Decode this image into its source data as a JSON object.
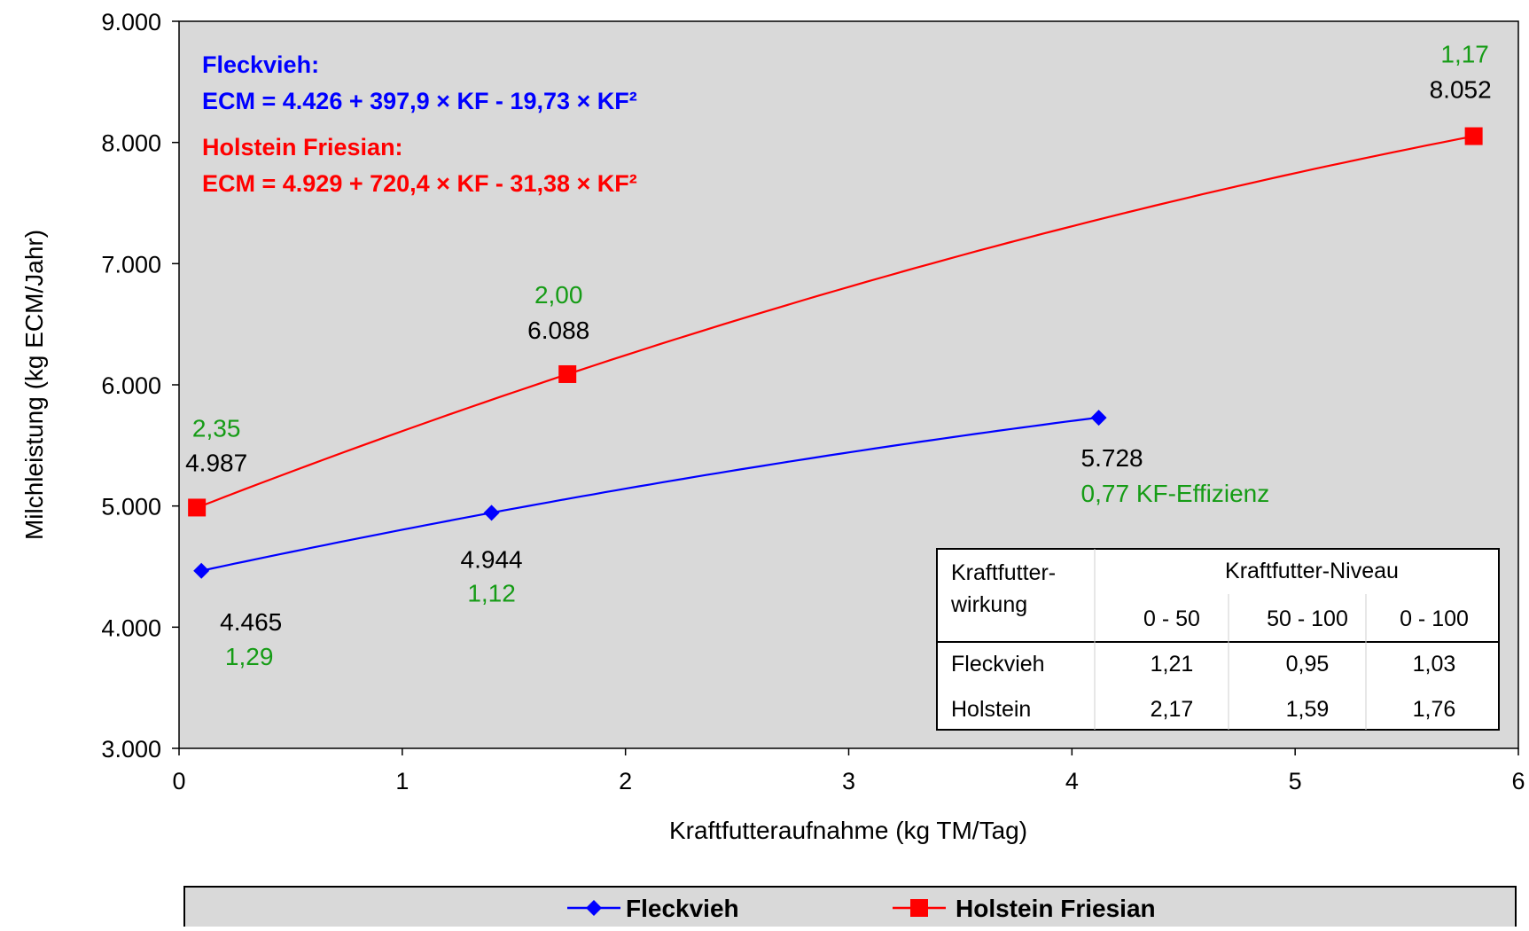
{
  "chart_data": {
    "type": "line",
    "xlabel": "Kraftfutteraufnahme (kg TM/Tag)",
    "ylabel": "Milchleistung (kg ECM/Jahr)",
    "xlim": [
      0,
      6
    ],
    "ylim": [
      3000,
      9000
    ],
    "x_ticks": [
      0,
      1,
      2,
      3,
      4,
      5,
      6
    ],
    "x_tick_labels": [
      "0",
      "1",
      "2",
      "3",
      "4",
      "5",
      "6"
    ],
    "y_ticks": [
      3000,
      4000,
      5000,
      6000,
      7000,
      8000,
      9000
    ],
    "y_tick_labels": [
      "3.000",
      "4.000",
      "5.000",
      "6.000",
      "7.000",
      "8.000",
      "9.000"
    ],
    "grid": false,
    "legend_position": "bottom",
    "series": [
      {
        "name": "Fleckvieh",
        "color": "#0000ff",
        "marker": "diamond",
        "x": [
          0.1,
          1.4,
          4.12
        ],
        "y": [
          4465,
          4944,
          5728
        ],
        "fit": {
          "a": 4426,
          "b": 397.9,
          "c": -19.73
        },
        "value_labels": [
          "4.465",
          "4.944",
          "5.728"
        ],
        "efficiency_labels": [
          "1,29",
          "1,12",
          "0,77 KF-Effizienz"
        ]
      },
      {
        "name": "Holstein Friesian",
        "color": "#ff0000",
        "marker": "square",
        "x": [
          0.08,
          1.74,
          5.8
        ],
        "y": [
          4987,
          6088,
          8052
        ],
        "fit": {
          "a": 4929,
          "b": 720.4,
          "c": -31.38
        },
        "value_labels": [
          "4.987",
          "6.088",
          "8.052"
        ],
        "efficiency_labels": [
          "2,35",
          "2,00",
          "1,17"
        ]
      }
    ],
    "annotations": {
      "fleckvieh_title": "Fleckvieh:",
      "fleckvieh_equation": "ECM = 4.426 + 397,9 × KF - 19,73 × KF²",
      "holstein_title": "Holstein Friesian:",
      "holstein_equation": "ECM = 4.929 + 720,4 × KF - 31,38 × KF²"
    },
    "table": {
      "row_header_line1": "Kraftfutter-",
      "row_header_line2": "wirkung",
      "group_header": "Kraftfutter-Niveau",
      "columns": [
        "0 - 50",
        "50 - 100",
        "0 - 100"
      ],
      "rows": [
        {
          "label": "Fleckvieh",
          "values": [
            "1,21",
            "0,95",
            "1,03"
          ]
        },
        {
          "label": "Holstein",
          "values": [
            "2,17",
            "1,59",
            "1,76"
          ]
        }
      ]
    },
    "colors": {
      "plot_background": "#d9d9d9",
      "label_black": "#000000",
      "efficiency_green": "#169c16"
    }
  }
}
